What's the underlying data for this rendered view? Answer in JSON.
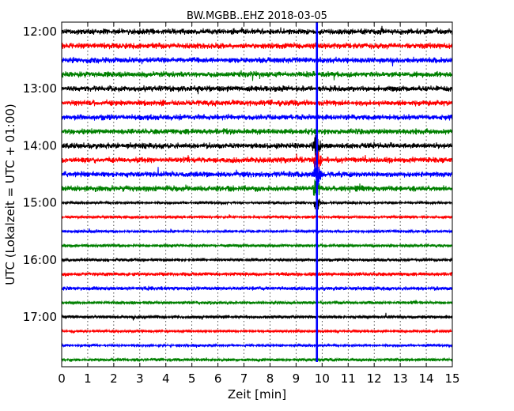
{
  "chart_data": {
    "type": "line",
    "title": "BW.MGBB..EHZ 2018-03-05",
    "xlabel": "Zeit  [min]",
    "ylabel": "UTC (Lokalzeit = UTC + 01:00)",
    "xlim": [
      0,
      15
    ],
    "x_ticks": [
      "0",
      "1",
      "2",
      "3",
      "4",
      "5",
      "6",
      "7",
      "8",
      "9",
      "10",
      "11",
      "12",
      "13",
      "14",
      "15"
    ],
    "y_tick_labels": [
      "12:00",
      "13:00",
      "14:00",
      "15:00",
      "16:00",
      "17:00"
    ],
    "grid": true,
    "trace_colors": [
      "#000000",
      "#ff0000",
      "#0000ff",
      "#008000"
    ],
    "traces": [
      {
        "start": "12:00",
        "amp": 4.5
      },
      {
        "start": "12:15",
        "amp": 4.5
      },
      {
        "start": "12:30",
        "amp": 4.5
      },
      {
        "start": "12:45",
        "amp": 4.5
      },
      {
        "start": "13:00",
        "amp": 4.5
      },
      {
        "start": "13:15",
        "amp": 4.5
      },
      {
        "start": "13:30",
        "amp": 4.5
      },
      {
        "start": "13:45",
        "amp": 4.5
      },
      {
        "start": "14:00",
        "amp": 4.5
      },
      {
        "start": "14:15",
        "amp": 4.5
      },
      {
        "start": "14:30",
        "amp": 4.5
      },
      {
        "start": "14:45",
        "amp": 4.5
      },
      {
        "start": "15:00",
        "amp": 2
      },
      {
        "start": "15:15",
        "amp": 2
      },
      {
        "start": "15:30",
        "amp": 2
      },
      {
        "start": "15:45",
        "amp": 2.5
      },
      {
        "start": "16:00",
        "amp": 2.5
      },
      {
        "start": "16:15",
        "amp": 3
      },
      {
        "start": "16:30",
        "amp": 3
      },
      {
        "start": "16:45",
        "amp": 2.5
      },
      {
        "start": "17:00",
        "amp": 2.5
      },
      {
        "start": "17:15",
        "amp": 2
      },
      {
        "start": "17:30",
        "amp": 2
      },
      {
        "start": "17:45",
        "amp": 2.5
      }
    ],
    "event_marker": {
      "x": 9.8,
      "color": "#0000ff"
    }
  }
}
